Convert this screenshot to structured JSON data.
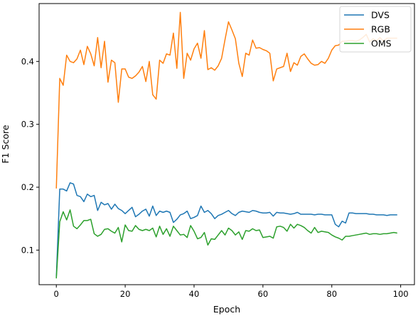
{
  "chart_data": {
    "type": "line",
    "title": "",
    "xlabel": "Epoch",
    "ylabel": "F1 Score",
    "xlim": [
      -5,
      104
    ],
    "ylim": [
      0.045,
      0.492
    ],
    "xticks": [
      0,
      20,
      40,
      60,
      80,
      100
    ],
    "yticks": [
      0.1,
      0.2,
      0.3,
      0.4
    ],
    "grid": false,
    "legend_position": "top-right",
    "x": [
      0,
      1,
      2,
      3,
      4,
      5,
      6,
      7,
      8,
      9,
      10,
      11,
      12,
      13,
      14,
      15,
      16,
      17,
      18,
      19,
      20,
      21,
      22,
      23,
      24,
      25,
      26,
      27,
      28,
      29,
      30,
      31,
      32,
      33,
      34,
      35,
      36,
      37,
      38,
      39,
      40,
      41,
      42,
      43,
      44,
      45,
      46,
      47,
      48,
      49,
      50,
      51,
      52,
      53,
      54,
      55,
      56,
      57,
      58,
      59,
      60,
      61,
      62,
      63,
      64,
      65,
      66,
      67,
      68,
      69,
      70,
      71,
      72,
      73,
      74,
      75,
      76,
      77,
      78,
      79,
      80,
      81,
      82,
      83,
      84,
      85,
      86,
      87,
      88,
      89,
      90,
      91,
      92,
      93,
      94,
      95,
      96,
      97,
      98,
      99
    ],
    "series": [
      {
        "name": "DVS",
        "color": "#1f77b4",
        "values": [
          0.057,
          0.197,
          0.197,
          0.194,
          0.207,
          0.205,
          0.187,
          0.185,
          0.177,
          0.189,
          0.185,
          0.187,
          0.163,
          0.176,
          0.172,
          0.174,
          0.165,
          0.173,
          0.166,
          0.163,
          0.158,
          0.163,
          0.168,
          0.153,
          0.157,
          0.162,
          0.165,
          0.154,
          0.17,
          0.155,
          0.162,
          0.16,
          0.162,
          0.16,
          0.144,
          0.149,
          0.156,
          0.158,
          0.162,
          0.15,
          0.152,
          0.155,
          0.17,
          0.16,
          0.163,
          0.158,
          0.15,
          0.155,
          0.157,
          0.16,
          0.163,
          0.158,
          0.155,
          0.16,
          0.162,
          0.161,
          0.16,
          0.163,
          0.162,
          0.16,
          0.159,
          0.159,
          0.16,
          0.154,
          0.16,
          0.159,
          0.159,
          0.158,
          0.157,
          0.158,
          0.16,
          0.157,
          0.157,
          0.157,
          0.157,
          0.156,
          0.157,
          0.157,
          0.156,
          0.156,
          0.156,
          0.141,
          0.137,
          0.146,
          0.143,
          0.159,
          0.159,
          0.158,
          0.158,
          0.158,
          0.158,
          0.157,
          0.157,
          0.156,
          0.156,
          0.156,
          0.155,
          0.156,
          0.156,
          0.156
        ]
      },
      {
        "name": "RGB",
        "color": "#ff7f0e",
        "values": [
          0.198,
          0.373,
          0.362,
          0.41,
          0.4,
          0.398,
          0.404,
          0.418,
          0.395,
          0.424,
          0.412,
          0.393,
          0.438,
          0.39,
          0.432,
          0.367,
          0.402,
          0.398,
          0.335,
          0.388,
          0.388,
          0.375,
          0.373,
          0.377,
          0.383,
          0.392,
          0.368,
          0.4,
          0.347,
          0.34,
          0.402,
          0.397,
          0.412,
          0.41,
          0.445,
          0.389,
          0.478,
          0.373,
          0.413,
          0.402,
          0.42,
          0.429,
          0.405,
          0.449,
          0.387,
          0.39,
          0.386,
          0.393,
          0.405,
          0.435,
          0.463,
          0.45,
          0.436,
          0.397,
          0.376,
          0.413,
          0.41,
          0.434,
          0.421,
          0.422,
          0.419,
          0.417,
          0.413,
          0.369,
          0.388,
          0.39,
          0.392,
          0.413,
          0.384,
          0.398,
          0.394,
          0.408,
          0.412,
          0.404,
          0.397,
          0.394,
          0.395,
          0.4,
          0.397,
          0.405,
          0.418,
          0.425,
          0.426,
          0.432,
          0.432,
          0.433,
          0.433,
          0.432,
          0.434,
          0.438,
          0.443,
          0.431,
          0.436,
          0.433,
          0.438,
          0.432,
          0.437,
          0.437,
          0.437,
          0.437
        ]
      },
      {
        "name": "OMS",
        "color": "#2ca02c",
        "values": [
          0.055,
          0.145,
          0.161,
          0.148,
          0.164,
          0.138,
          0.134,
          0.14,
          0.147,
          0.147,
          0.149,
          0.126,
          0.122,
          0.125,
          0.133,
          0.134,
          0.13,
          0.127,
          0.136,
          0.113,
          0.14,
          0.131,
          0.13,
          0.139,
          0.133,
          0.131,
          0.133,
          0.131,
          0.135,
          0.121,
          0.138,
          0.125,
          0.134,
          0.122,
          0.138,
          0.131,
          0.124,
          0.125,
          0.12,
          0.139,
          0.13,
          0.118,
          0.12,
          0.128,
          0.108,
          0.118,
          0.117,
          0.124,
          0.131,
          0.124,
          0.135,
          0.131,
          0.124,
          0.129,
          0.117,
          0.131,
          0.13,
          0.134,
          0.131,
          0.132,
          0.12,
          0.121,
          0.122,
          0.119,
          0.137,
          0.138,
          0.136,
          0.13,
          0.141,
          0.135,
          0.141,
          0.139,
          0.136,
          0.131,
          0.127,
          0.136,
          0.128,
          0.13,
          0.129,
          0.128,
          0.124,
          0.121,
          0.119,
          0.116,
          0.122,
          0.122,
          0.123,
          0.124,
          0.125,
          0.126,
          0.127,
          0.125,
          0.126,
          0.126,
          0.125,
          0.126,
          0.126,
          0.127,
          0.128,
          0.127
        ]
      }
    ]
  }
}
